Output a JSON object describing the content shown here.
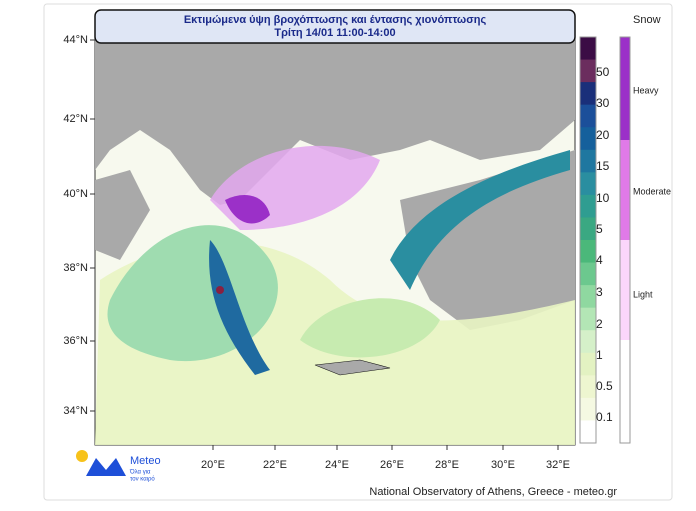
{
  "header": {
    "title_line1": "Εκτιμώμενα ύψη βροχόπτωσης και έντασης χιονόπτωσης",
    "title_line2": "Τρίτη 14/01 11:00-14:00"
  },
  "map": {
    "lat_labels": [
      "44°N",
      "42°N",
      "40°N",
      "38°N",
      "36°N",
      "34°N"
    ],
    "lon_labels": [
      "20°E",
      "22°E",
      "24°E",
      "26°E",
      "28°E",
      "30°E",
      "32°E"
    ]
  },
  "rain_scale": {
    "labels": [
      "50",
      "30",
      "20",
      "15",
      "10",
      "5",
      "4",
      "3",
      "2",
      "1",
      "0.5",
      "0.1"
    ]
  },
  "snow_scale": {
    "title": "Snow",
    "labels": [
      "Heavy",
      "Moderate",
      "Light"
    ]
  },
  "logo": {
    "name": "Meteo",
    "tagline_line1": "Όλα για",
    "tagline_line2": "τον καιρό"
  },
  "footer": {
    "credit": "National Observatory of Athens, Greece - meteo.gr"
  }
}
